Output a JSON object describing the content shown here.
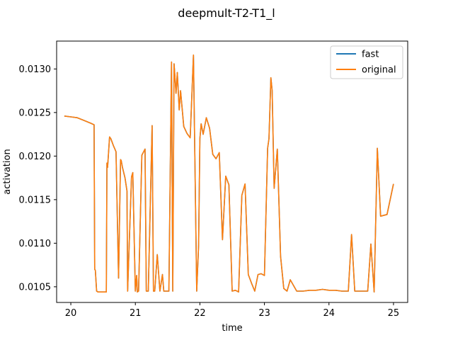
{
  "chart_data": {
    "type": "line",
    "title": "deepmult-T2-T1_l",
    "xlabel": "time",
    "ylabel": "activation",
    "xlim": [
      19.78,
      25.22
    ],
    "ylim": [
      0.01032,
      0.01332
    ],
    "xticks": [
      20,
      21,
      22,
      23,
      24,
      25
    ],
    "xtick_labels": [
      "20",
      "21",
      "22",
      "23",
      "24",
      "25"
    ],
    "yticks": [
      0.0105,
      0.011,
      0.0115,
      0.012,
      0.0125,
      0.013
    ],
    "ytick_labels": [
      "0.0105",
      "0.0110",
      "0.0115",
      "0.0120",
      "0.0125",
      "0.0130"
    ],
    "grid": false,
    "legend_position": "upper right",
    "series": [
      {
        "name": "fast",
        "color": "#1f77b4",
        "x": [
          19.9,
          20.0,
          20.1,
          20.2,
          20.3,
          20.36,
          20.37,
          20.38,
          20.4,
          20.42,
          20.44,
          20.55,
          20.56,
          20.57,
          20.6,
          20.62,
          20.64,
          20.66,
          20.7,
          20.74,
          20.77,
          20.78,
          20.8,
          20.84,
          20.87,
          20.88,
          20.94,
          20.96,
          21.0,
          21.02,
          21.03,
          21.05,
          21.1,
          21.15,
          21.17,
          21.2,
          21.26,
          21.28,
          21.3,
          21.34,
          21.38,
          21.42,
          21.44,
          21.52,
          21.56,
          21.58,
          21.6,
          21.63,
          21.65,
          21.68,
          21.7,
          21.75,
          21.8,
          21.85,
          21.9,
          21.95,
          21.98,
          22.0,
          22.02,
          22.05,
          22.1,
          22.15,
          22.2,
          22.25,
          22.3,
          22.35,
          22.4,
          22.45,
          22.5,
          22.55,
          22.6,
          22.65,
          22.7,
          22.75,
          22.8,
          22.85,
          22.9,
          22.95,
          23.0,
          23.05,
          23.07,
          23.1,
          23.12,
          23.15,
          23.2,
          23.25,
          23.3,
          23.35,
          23.4,
          23.5,
          23.6,
          23.7,
          23.8,
          23.9,
          24.0,
          24.1,
          24.2,
          24.3,
          24.35,
          24.4,
          24.5,
          24.6,
          24.65,
          24.7,
          24.75,
          24.8,
          24.9,
          25.0
        ],
        "y": [
          0.01246,
          0.01245,
          0.01244,
          0.01241,
          0.01238,
          0.01236,
          0.0107,
          0.01069,
          0.01045,
          0.01044,
          0.01044,
          0.01044,
          0.01192,
          0.01187,
          0.01222,
          0.0122,
          0.01216,
          0.01212,
          0.01205,
          0.0106,
          0.01196,
          0.01195,
          0.01187,
          0.01175,
          0.0116,
          0.01045,
          0.01176,
          0.01181,
          0.01045,
          0.01063,
          0.01044,
          0.01045,
          0.01201,
          0.01208,
          0.01045,
          0.01045,
          0.01235,
          0.01045,
          0.01045,
          0.01087,
          0.01045,
          0.01064,
          0.01045,
          0.01045,
          0.01308,
          0.01045,
          0.01306,
          0.01272,
          0.01296,
          0.01253,
          0.01275,
          0.01234,
          0.01226,
          0.01221,
          0.01316,
          0.01045,
          0.01098,
          0.0122,
          0.01237,
          0.01225,
          0.01244,
          0.01232,
          0.01202,
          0.01197,
          0.01204,
          0.01104,
          0.01177,
          0.01167,
          0.01045,
          0.01046,
          0.01044,
          0.01155,
          0.01168,
          0.01064,
          0.01054,
          0.01045,
          0.01064,
          0.01065,
          0.01063,
          0.01209,
          0.0122,
          0.0129,
          0.01275,
          0.01163,
          0.01208,
          0.01085,
          0.01048,
          0.01045,
          0.01058,
          0.01045,
          0.01045,
          0.01046,
          0.01046,
          0.01047,
          0.01046,
          0.01046,
          0.01045,
          0.01045,
          0.0111,
          0.01045,
          0.01045,
          0.01045,
          0.01099,
          0.01044,
          0.01209,
          0.01131,
          0.01133,
          0.01168
        ]
      },
      {
        "name": "original",
        "color": "#ff7f0e",
        "x": [
          19.9,
          20.0,
          20.1,
          20.2,
          20.3,
          20.36,
          20.37,
          20.38,
          20.4,
          20.42,
          20.44,
          20.55,
          20.56,
          20.57,
          20.6,
          20.62,
          20.64,
          20.66,
          20.7,
          20.74,
          20.77,
          20.78,
          20.8,
          20.84,
          20.87,
          20.88,
          20.94,
          20.96,
          21.0,
          21.02,
          21.03,
          21.05,
          21.1,
          21.15,
          21.17,
          21.2,
          21.26,
          21.28,
          21.3,
          21.34,
          21.38,
          21.42,
          21.44,
          21.52,
          21.56,
          21.58,
          21.6,
          21.63,
          21.65,
          21.68,
          21.7,
          21.75,
          21.8,
          21.85,
          21.9,
          21.95,
          21.98,
          22.0,
          22.02,
          22.05,
          22.1,
          22.15,
          22.2,
          22.25,
          22.3,
          22.35,
          22.4,
          22.45,
          22.5,
          22.55,
          22.6,
          22.65,
          22.7,
          22.75,
          22.8,
          22.85,
          22.9,
          22.95,
          23.0,
          23.05,
          23.07,
          23.1,
          23.12,
          23.15,
          23.2,
          23.25,
          23.3,
          23.35,
          23.4,
          23.5,
          23.6,
          23.7,
          23.8,
          23.9,
          24.0,
          24.1,
          24.2,
          24.3,
          24.35,
          24.4,
          24.5,
          24.6,
          24.65,
          24.7,
          24.75,
          24.8,
          24.9,
          25.0
        ],
        "y": [
          0.01246,
          0.01245,
          0.01244,
          0.01241,
          0.01238,
          0.01236,
          0.0107,
          0.01069,
          0.01045,
          0.01044,
          0.01044,
          0.01044,
          0.01192,
          0.01187,
          0.01222,
          0.0122,
          0.01216,
          0.01212,
          0.01205,
          0.0106,
          0.01196,
          0.01195,
          0.01187,
          0.01175,
          0.0116,
          0.01045,
          0.01176,
          0.01181,
          0.01045,
          0.01063,
          0.01044,
          0.01045,
          0.01201,
          0.01208,
          0.01045,
          0.01045,
          0.01235,
          0.01045,
          0.01045,
          0.01087,
          0.01045,
          0.01064,
          0.01045,
          0.01045,
          0.01308,
          0.01045,
          0.01306,
          0.01272,
          0.01296,
          0.01253,
          0.01275,
          0.01234,
          0.01226,
          0.01221,
          0.01316,
          0.01045,
          0.01098,
          0.0122,
          0.01237,
          0.01225,
          0.01244,
          0.01232,
          0.01202,
          0.01197,
          0.01204,
          0.01104,
          0.01177,
          0.01167,
          0.01045,
          0.01046,
          0.01044,
          0.01155,
          0.01168,
          0.01064,
          0.01054,
          0.01045,
          0.01064,
          0.01065,
          0.01063,
          0.01209,
          0.0122,
          0.0129,
          0.01275,
          0.01163,
          0.01208,
          0.01085,
          0.01048,
          0.01045,
          0.01058,
          0.01045,
          0.01045,
          0.01046,
          0.01046,
          0.01047,
          0.01046,
          0.01046,
          0.01045,
          0.01045,
          0.0111,
          0.01045,
          0.01045,
          0.01045,
          0.01099,
          0.01044,
          0.01209,
          0.01131,
          0.01133,
          0.01168
        ]
      }
    ]
  }
}
